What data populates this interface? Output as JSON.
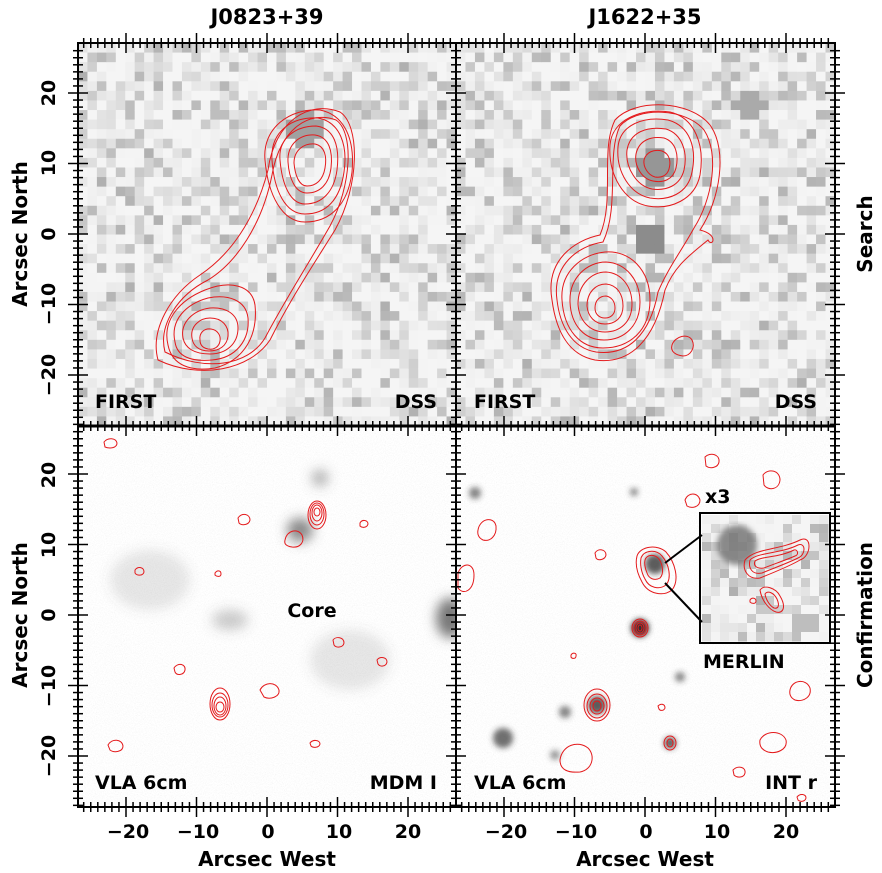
{
  "titles": {
    "left": "J0823+39",
    "right": "J1622+35"
  },
  "axis_labels": {
    "y": "Arcsec North",
    "x": "Arcsec West",
    "row_top": "Search",
    "row_bottom": "Confirmation"
  },
  "tick_labels": {
    "x": [
      "−20",
      "−10",
      "0",
      "10",
      "20"
    ],
    "y": [
      "20",
      "10",
      "0",
      "−10",
      "−20"
    ]
  },
  "panels": {
    "tl": {
      "radio": "FIRST",
      "optical": "DSS"
    },
    "tr": {
      "radio": "FIRST",
      "optical": "DSS"
    },
    "bl": {
      "radio": "VLA 6cm",
      "optical": "MDM I",
      "annotation": "Core"
    },
    "br": {
      "radio": "VLA 6cm",
      "optical": "INT r",
      "inset_scale": "x3",
      "inset_label": "MERLIN"
    }
  },
  "colors": {
    "contour": "#e41a1c",
    "frame": "#000000",
    "background": "#ffffff"
  }
}
